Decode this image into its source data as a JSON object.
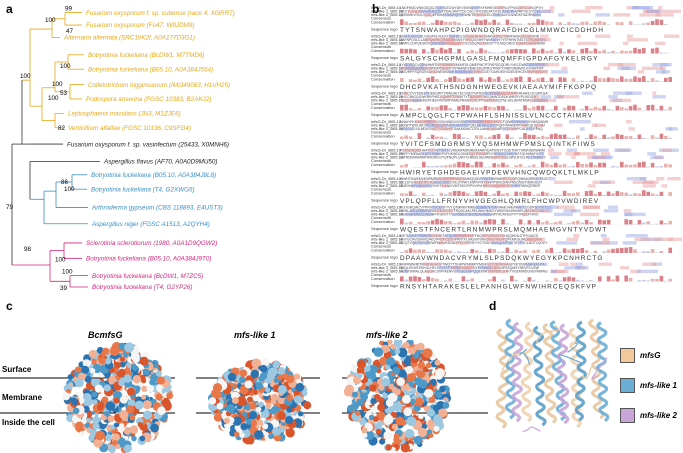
{
  "panels": {
    "a": {
      "label": "a",
      "taxa": [
        {
          "text": "Fusarium oxysporum f. sp. cubense (race 4, X0IRR7)",
          "color": "#e6a817"
        },
        {
          "text": "Fusarium oxysporum (Fo47, W9JDM9)",
          "color": "#e6a817"
        },
        {
          "text": "Alternaria alternata (SRC1lrK2f, A0A177D3G1)",
          "color": "#e6a817"
        },
        {
          "text": "Botryotinia fuckeliana (BcDW1, M7TMD6)",
          "color": "#e6a817"
        },
        {
          "text": "Botryotinia fuckeliana (B05.10, A0A384J554)",
          "color": "#e6a817"
        },
        {
          "text": "Colletotrichum higginsianum (IMI349063, H1VH25)",
          "color": "#e6a817"
        },
        {
          "text": "Podospora anserina (FGSC 10383, B2AKJ2)",
          "color": "#e6a817"
        },
        {
          "text": "Leptosphaeria maculans (JN3, M1ZJE6)",
          "color": "#e6a817"
        },
        {
          "text": "Verticillium alfalfae (FGSC 10136, C9SFG4)",
          "color": "#e6a817"
        },
        {
          "text": "Fusarium oxysporum f. sp. vasinfectum (25433, X0MNH6)",
          "color": "#222222"
        },
        {
          "text": "Aspergillus flavus (AF70, A0A0D9MU50)",
          "color": "#222222"
        },
        {
          "text": "Botryotinia fuckeliana (B05.10, A0A384J8L8)",
          "color": "#3a8fc8"
        },
        {
          "text": "Botryotinia fuckeliana (T4, G2XWG5)",
          "color": "#3a8fc8"
        },
        {
          "text": "Arthroderma gypseum (CBS 118893, E4UST3)",
          "color": "#3a8fc8"
        },
        {
          "text": "Aspergillus niger (FGSC A1513, A2QYH4)",
          "color": "#3a8fc8"
        },
        {
          "text": "Sclerotinia sclerotiorum (1980, A0A1D9QGW2)",
          "color": "#d4257e"
        },
        {
          "text": "Botryotinia fuckeliana (B05.10, A0A384J9T0)",
          "color": "#d4257e"
        },
        {
          "text": "Botryotinia fuckeliana (BcDW1, M7ZC5)",
          "color": "#d4257e"
        },
        {
          "text": "Botryotinia fuckeliana (T4, G2YP26)",
          "color": "#d4257e"
        }
      ],
      "bootstrap": [
        "99",
        "47",
        "100",
        "100",
        "53",
        "100",
        "82",
        "100",
        "100",
        "100",
        "86",
        "79",
        "98",
        "100",
        "100",
        "39"
      ]
    },
    "b": {
      "label": "b",
      "row_labels": [
        "mfsG-Dr_B05.10",
        "mfs-like 1_B05.10",
        "mfs-like 2_B05.10",
        "Consensus",
        "Conservation",
        "Sequence logo"
      ]
    },
    "c": {
      "label": "c",
      "titles": [
        "BcmfsG",
        "mfs-like 1",
        "mfs-like 2"
      ],
      "layers": [
        "Surface",
        "Membrane",
        "Inside the cell"
      ]
    },
    "d": {
      "label": "d",
      "legend": [
        {
          "name": "mfsG",
          "color": "#f2c99a"
        },
        {
          "name": "mfs-like 1",
          "color": "#6aaed6"
        },
        {
          "name": "mfs-like 2",
          "color": "#c9a6d8"
        }
      ]
    }
  }
}
